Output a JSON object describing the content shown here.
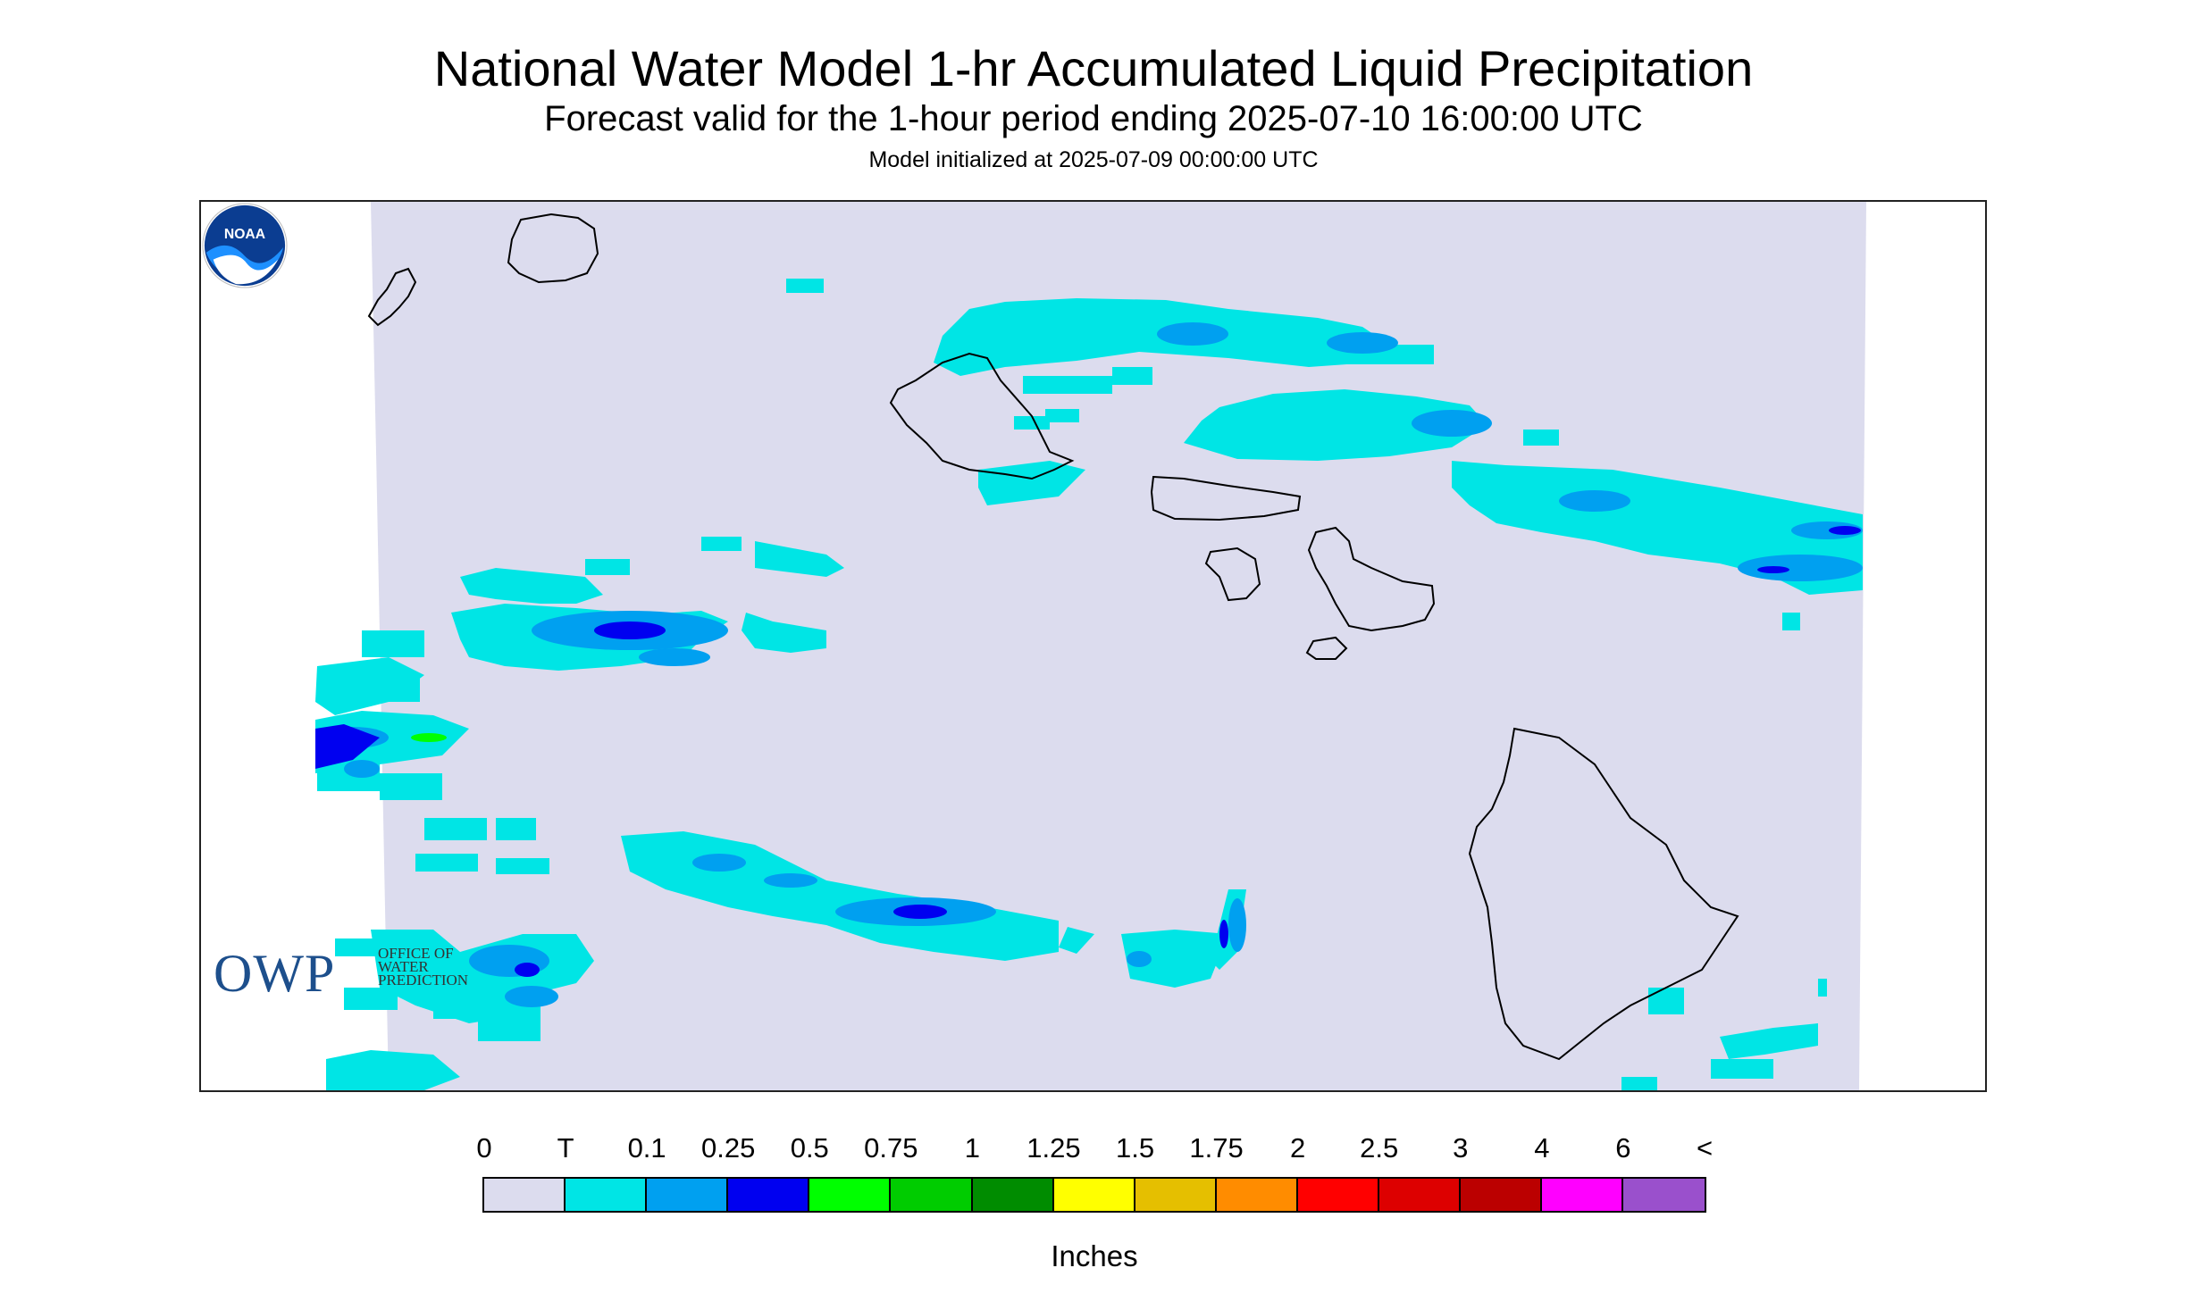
{
  "header": {
    "title": "National Water Model 1-hr Accumulated Liquid Precipitation",
    "subtitle": "Forecast valid for the 1-hour period ending 2025-07-10 16:00:00 UTC",
    "init_line": "Model initialized at 2025-07-09 00:00:00 UTC"
  },
  "map": {
    "domain_fill": "#dcdcee",
    "coastline_color": "#000000",
    "islands": [
      "Niihau",
      "Kauai",
      "Oahu",
      "Molokai",
      "Lanai",
      "Maui",
      "Kahoolawe",
      "Hawaii"
    ],
    "precip_bins_shown": [
      "T",
      "0.1",
      "0.25",
      "0.5"
    ]
  },
  "branding": {
    "owp_logo_text": "OWP",
    "owp_logo_subtext": [
      "OFFICE OF",
      "WATER",
      "PREDICTION"
    ],
    "noaa_logo_text": "NOAA"
  },
  "legend": {
    "ticks": [
      "0",
      "T",
      "0.1",
      "0.25",
      "0.5",
      "0.75",
      "1",
      "1.25",
      "1.5",
      "1.75",
      "2",
      "2.5",
      "3",
      "4",
      "6",
      "<"
    ],
    "colors": [
      "#dcdcee",
      "#00e5e5",
      "#00a0f0",
      "#0000f0",
      "#00ff00",
      "#00cc00",
      "#008c00",
      "#ffff00",
      "#e5bf00",
      "#ff8c00",
      "#ff0000",
      "#dd0000",
      "#bb0000",
      "#ff00ff",
      "#9a50cc"
    ],
    "units_label": "Inches"
  }
}
